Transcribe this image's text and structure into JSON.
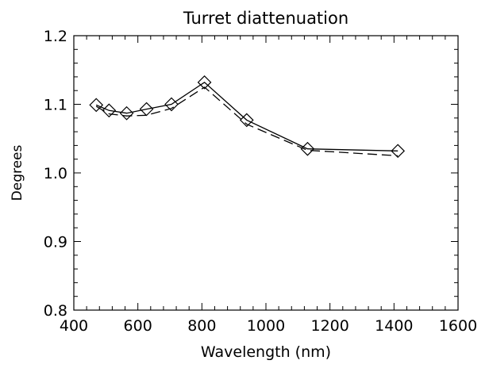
{
  "chart_data": {
    "type": "line",
    "title": "Turret diattenuation",
    "xlabel": "Wavelength (nm)",
    "ylabel": "Degrees",
    "xlim": [
      400,
      1600
    ],
    "ylim": [
      0.8,
      1.2
    ],
    "x_ticks": [
      400,
      600,
      800,
      1000,
      1200,
      1400,
      1600
    ],
    "y_ticks": [
      0.8,
      0.9,
      1.0,
      1.1,
      1.2
    ],
    "x_tick_labels": [
      "400",
      "600",
      "800",
      "1000",
      "1200",
      "1400",
      "1600"
    ],
    "y_tick_labels": [
      "0.8",
      "0.9",
      "1.0",
      "1.1",
      "1.2"
    ],
    "grid": false,
    "legend": "none",
    "series": [
      {
        "style": "solid",
        "marker": "diamond",
        "color": "#000000",
        "x": [
          470,
          510,
          565,
          627,
          705,
          808,
          940,
          1130,
          1412
        ],
        "y": [
          1.099,
          1.091,
          1.087,
          1.093,
          1.1,
          1.132,
          1.077,
          1.035,
          1.032
        ]
      },
      {
        "style": "dashed",
        "marker": "none",
        "color": "#000000",
        "x": [
          470,
          510,
          565,
          627,
          705,
          808,
          940,
          1130,
          1412
        ],
        "y": [
          1.097,
          1.086,
          1.083,
          1.084,
          1.094,
          1.125,
          1.071,
          1.033,
          1.025
        ]
      }
    ]
  }
}
